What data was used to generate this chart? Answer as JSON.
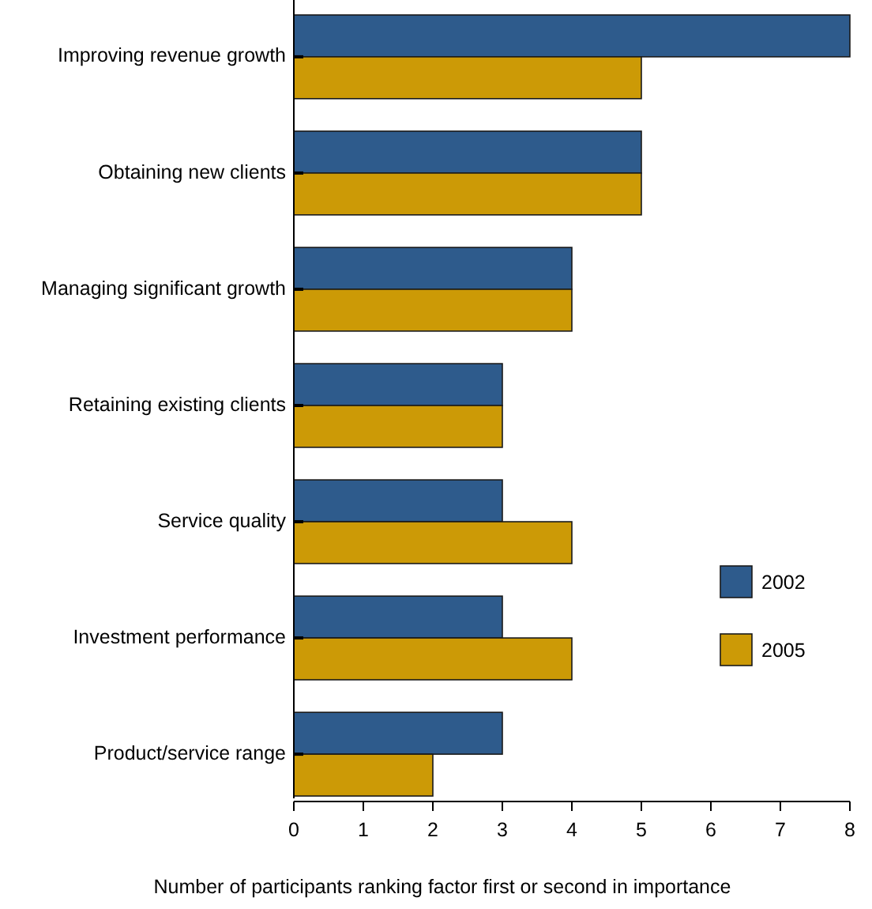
{
  "chart_data": {
    "type": "bar",
    "orientation": "horizontal",
    "xlabel": "Number of participants ranking factor first or second in importance",
    "categories": [
      "Improving revenue growth",
      "Obtaining new clients",
      "Managing significant growth",
      "Retaining existing clients",
      "Service quality",
      "Investment performance",
      "Product/service range"
    ],
    "series": [
      {
        "name": "2002",
        "color": "#2e5b8c",
        "values": [
          8,
          5,
          4,
          3,
          3,
          3,
          3
        ]
      },
      {
        "name": "2005",
        "color": "#cc9a06",
        "values": [
          5,
          5,
          4,
          3,
          4,
          4,
          2
        ]
      }
    ],
    "xlim": [
      0,
      8
    ],
    "xticks": [
      0,
      1,
      2,
      3,
      4,
      5,
      6,
      7,
      8
    ],
    "legend": "right"
  }
}
